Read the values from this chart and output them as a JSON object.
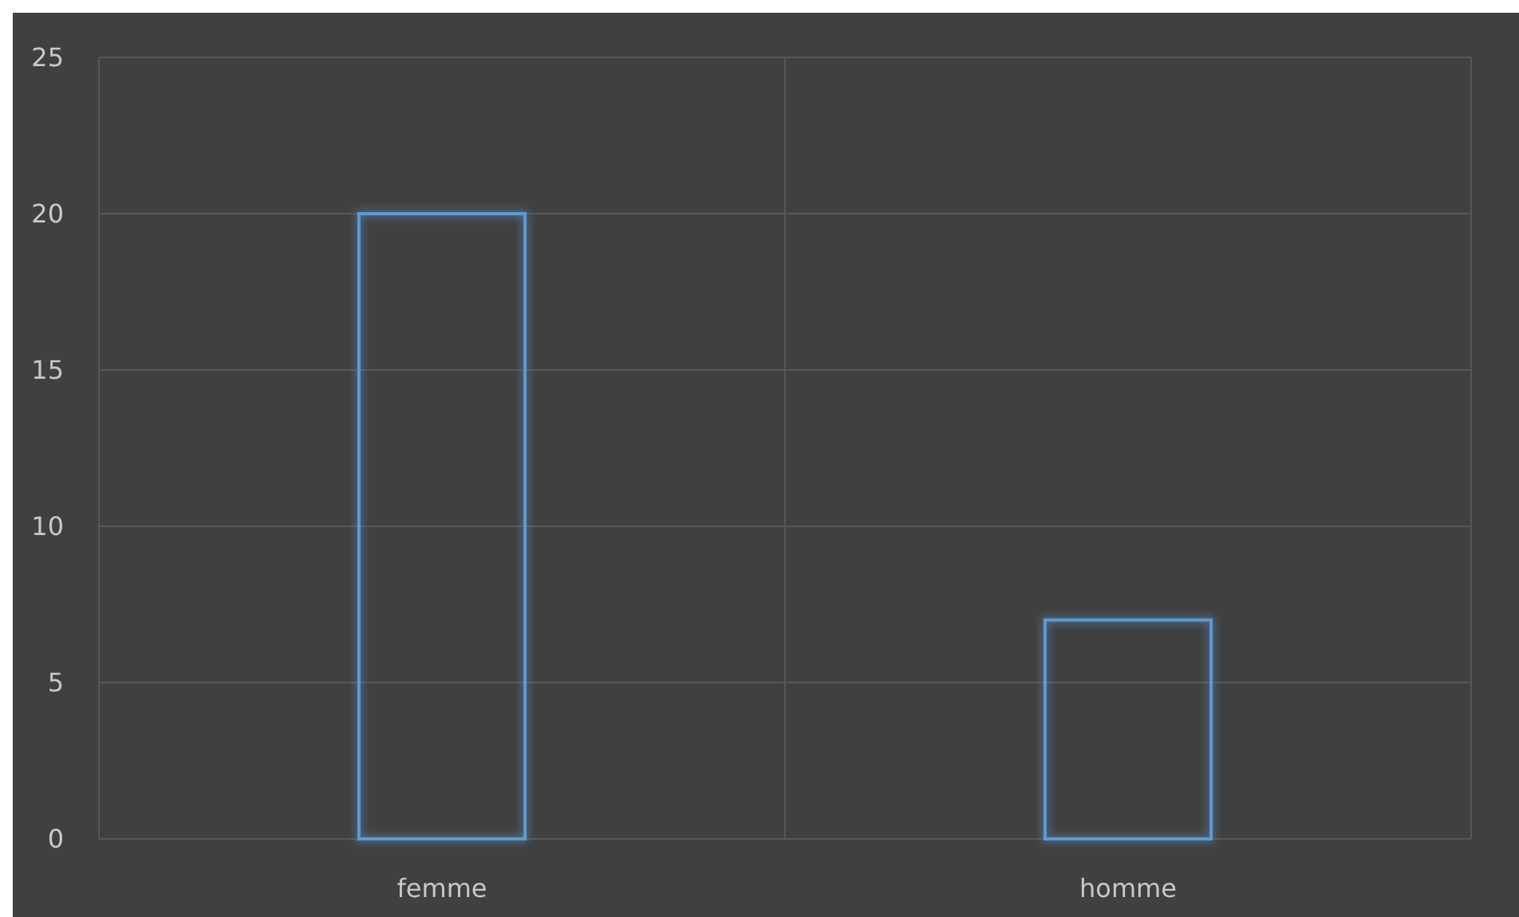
{
  "chart_data": {
    "type": "bar",
    "categories": [
      "femme",
      "homme"
    ],
    "values": [
      20,
      7
    ],
    "color": "#5b9bd5",
    "ylim": [
      0,
      25
    ],
    "yticks": [
      0,
      5,
      10,
      15,
      20,
      25
    ],
    "grid": true
  }
}
